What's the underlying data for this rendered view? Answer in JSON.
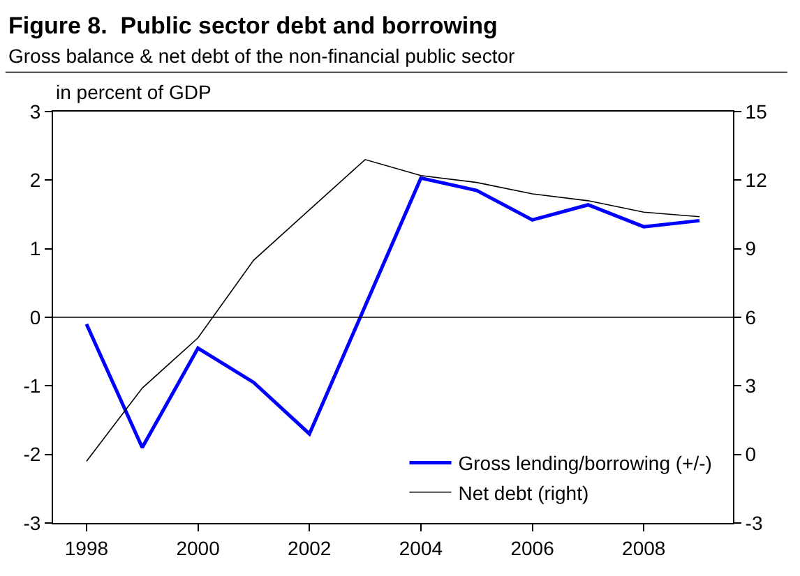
{
  "chart_data": {
    "type": "line",
    "title": "Figure 8.  Public sector debt and borrowing",
    "subtitle": "Gross balance & net debt of the non-financial public sector",
    "annotations": [
      "in percent of GDP"
    ],
    "categories": [
      "1998",
      null,
      "2000",
      null,
      "2002",
      null,
      "2004",
      null,
      "2006",
      null,
      "2008",
      null
    ],
    "series": [
      {
        "name": "Gross lending/borrowing (+/-)",
        "color": "#0000ff",
        "values": [
          -0.1,
          -1.9,
          -0.45,
          -0.95,
          -1.7,
          null,
          2.03,
          1.85,
          1.42,
          1.64,
          1.32,
          1.41
        ]
      },
      {
        "name": "Net debt (right)",
        "color": "#000000",
        "axis": "y2",
        "values": [
          -0.3,
          2.9,
          5.1,
          8.5,
          10.7,
          12.9,
          12.2,
          11.9,
          11.4,
          11.1,
          10.6,
          10.4
        ]
      }
    ],
    "ylim": [
      -3,
      3
    ],
    "yticks": [
      -3,
      -2,
      -1,
      0,
      1,
      2,
      3
    ],
    "y2lim": [
      -3,
      15
    ],
    "y2ticks": [
      -3,
      0,
      3,
      6,
      9,
      12,
      15
    ],
    "ref_lines": [
      {
        "axis": "y",
        "value": 0,
        "color": "#000000"
      }
    ],
    "legend": "bottom right"
  }
}
